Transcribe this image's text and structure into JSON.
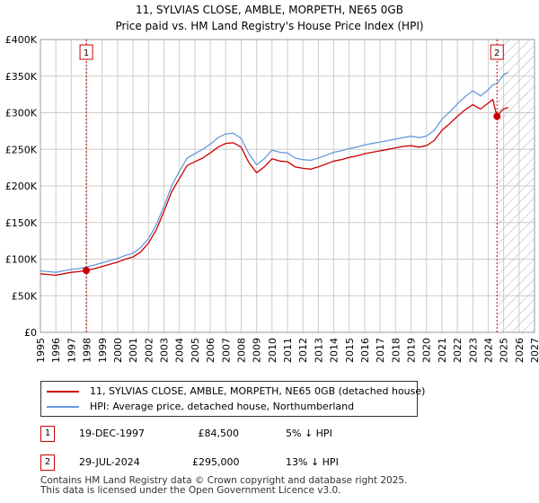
{
  "colors": {
    "price_line": "#cc0000",
    "hpi_line": "#6699dd",
    "grid": "#cccccc",
    "marker_line": "#cc0000",
    "hatch": "#bbbbbb"
  },
  "chart_data": {
    "type": "line",
    "title": "11, SYLVIAS CLOSE, AMBLE, MORPETH, NE65 0GB",
    "subtitle": "Price paid vs. HM Land Registry's House Price Index (HPI)",
    "xlabel": "",
    "ylabel": "",
    "xlim": [
      1995,
      2027
    ],
    "ylim": [
      0,
      400000
    ],
    "x_ticks": [
      "1995",
      "1996",
      "1997",
      "1998",
      "1999",
      "2000",
      "2001",
      "2002",
      "2003",
      "2004",
      "2005",
      "2006",
      "2007",
      "2008",
      "2009",
      "2010",
      "2011",
      "2012",
      "2013",
      "2014",
      "2015",
      "2016",
      "2017",
      "2018",
      "2019",
      "2020",
      "2021",
      "2022",
      "2023",
      "2024",
      "2025",
      "2026",
      "2027"
    ],
    "y_ticks": [
      {
        "value": 0,
        "label": "£0"
      },
      {
        "value": 50000,
        "label": "£50K"
      },
      {
        "value": 100000,
        "label": "£100K"
      },
      {
        "value": 150000,
        "label": "£150K"
      },
      {
        "value": 200000,
        "label": "£200K"
      },
      {
        "value": 250000,
        "label": "£250K"
      },
      {
        "value": 300000,
        "label": "£300K"
      },
      {
        "value": 350000,
        "label": "£350K"
      },
      {
        "value": 400000,
        "label": "£400K"
      }
    ],
    "grid": true,
    "hatch_from_year": 2024.6,
    "series": [
      {
        "name": "11, SYLVIAS CLOSE, AMBLE, MORPETH, NE65 0GB (detached house)",
        "color": "#cc0000",
        "x": [
          1995.0,
          1995.5,
          1996.0,
          1996.5,
          1997.0,
          1997.5,
          1997.97,
          1998.5,
          1999.0,
          1999.5,
          2000.0,
          2000.5,
          2001.0,
          2001.5,
          2002.0,
          2002.5,
          2003.0,
          2003.5,
          2004.0,
          2004.5,
          2005.0,
          2005.5,
          2006.0,
          2006.5,
          2007.0,
          2007.5,
          2008.0,
          2008.5,
          2009.0,
          2009.5,
          2010.0,
          2010.5,
          2011.0,
          2011.5,
          2012.0,
          2012.5,
          2013.0,
          2013.5,
          2014.0,
          2014.5,
          2015.0,
          2015.5,
          2016.0,
          2016.5,
          2017.0,
          2017.5,
          2018.0,
          2018.5,
          2019.0,
          2019.5,
          2020.0,
          2020.5,
          2021.0,
          2021.5,
          2022.0,
          2022.5,
          2023.0,
          2023.5,
          2024.0,
          2024.3,
          2024.57,
          2024.8,
          2025.0,
          2025.3
        ],
        "y": [
          80000,
          79000,
          78000,
          80000,
          82000,
          83000,
          84500,
          87000,
          90000,
          93000,
          96000,
          100000,
          103000,
          110000,
          122000,
          140000,
          165000,
          192000,
          210000,
          228000,
          233000,
          238000,
          245000,
          253000,
          258000,
          259000,
          253000,
          232000,
          218000,
          226000,
          237000,
          234000,
          233000,
          226000,
          224000,
          223000,
          226000,
          230000,
          234000,
          236000,
          239000,
          241000,
          244000,
          246000,
          248000,
          250000,
          252000,
          254000,
          255000,
          253000,
          255000,
          262000,
          276000,
          285000,
          295000,
          304000,
          311000,
          305000,
          313000,
          318000,
          295000,
          301000,
          305000,
          307000
        ]
      },
      {
        "name": "HPI: Average price, detached house, Northumberland",
        "color": "#6699dd",
        "x": [
          1995.0,
          1995.5,
          1996.0,
          1996.5,
          1997.0,
          1997.5,
          1997.97,
          1998.5,
          1999.0,
          1999.5,
          2000.0,
          2000.5,
          2001.0,
          2001.5,
          2002.0,
          2002.5,
          2003.0,
          2003.5,
          2004.0,
          2004.5,
          2005.0,
          2005.5,
          2006.0,
          2006.5,
          2007.0,
          2007.5,
          2008.0,
          2008.5,
          2009.0,
          2009.5,
          2010.0,
          2010.5,
          2011.0,
          2011.5,
          2012.0,
          2012.5,
          2013.0,
          2013.5,
          2014.0,
          2014.5,
          2015.0,
          2015.5,
          2016.0,
          2016.5,
          2017.0,
          2017.5,
          2018.0,
          2018.5,
          2019.0,
          2019.5,
          2020.0,
          2020.5,
          2021.0,
          2021.5,
          2022.0,
          2022.5,
          2023.0,
          2023.5,
          2024.0,
          2024.3,
          2024.57,
          2024.8,
          2025.0,
          2025.3
        ],
        "y": [
          84000,
          83000,
          82000,
          84000,
          86000,
          87000,
          89000,
          92000,
          95000,
          98000,
          101000,
          105000,
          108000,
          116000,
          128000,
          147000,
          172000,
          200000,
          220000,
          238000,
          244000,
          250000,
          257000,
          266000,
          271000,
          272000,
          265000,
          244000,
          229000,
          237000,
          249000,
          246000,
          245000,
          238000,
          236000,
          235000,
          238000,
          242000,
          246000,
          248000,
          251000,
          253000,
          256000,
          258000,
          260000,
          262000,
          264000,
          266000,
          268000,
          266000,
          268000,
          276000,
          291000,
          301000,
          312000,
          322000,
          330000,
          323000,
          331000,
          338000,
          340000,
          346000,
          352000,
          355000
        ]
      }
    ],
    "markers": [
      {
        "label": "1",
        "x": 1997.97,
        "y": 84500
      },
      {
        "label": "2",
        "x": 2024.57,
        "y": 295000
      }
    ]
  },
  "legend": {
    "items": [
      {
        "label": "11, SYLVIAS CLOSE, AMBLE, MORPETH, NE65 0GB (detached house)",
        "color": "#cc0000"
      },
      {
        "label": "HPI: Average price, detached house, Northumberland",
        "color": "#6699dd"
      }
    ]
  },
  "transactions": [
    {
      "badge": "1",
      "date": "19-DEC-1997",
      "price": "£84,500",
      "hpi": "5% ↓ HPI"
    },
    {
      "badge": "2",
      "date": "29-JUL-2024",
      "price": "£295,000",
      "hpi": "13% ↓ HPI"
    }
  ],
  "footer": {
    "line1": "Contains HM Land Registry data © Crown copyright and database right 2025.",
    "line2": "This data is licensed under the Open Government Licence v3.0."
  }
}
